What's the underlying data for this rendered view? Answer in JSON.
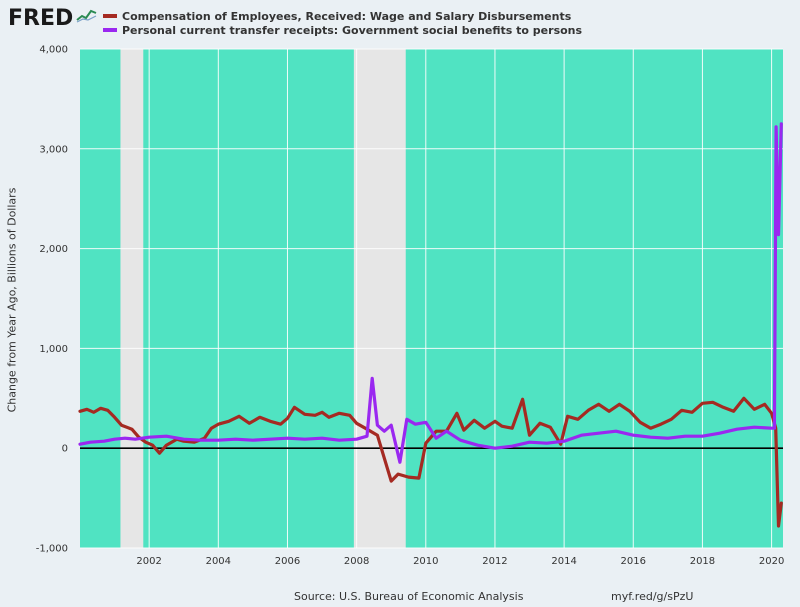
{
  "logo": {
    "text": "FRED",
    "icon": "fred-sparkline-icon"
  },
  "colors": {
    "plot_bg": "#50e3c2",
    "recession": "#e6e6e6",
    "page_bg": "#eaf0f4",
    "series_wage": "#a52a22",
    "series_transfer": "#9a28f0",
    "zero_line": "#000000"
  },
  "footer": {
    "source": "Source: U.S. Bureau of Economic Analysis",
    "url": "myf.red/g/sPzU"
  },
  "chart_data": {
    "type": "line",
    "title": "",
    "ylabel": "Change from Year Ago, Billions of Dollars",
    "xlabel": "",
    "xlim": [
      2000.0,
      2020.33
    ],
    "ylim": [
      -1000,
      4000
    ],
    "yticks": [
      -1000,
      0,
      1000,
      2000,
      3000,
      4000
    ],
    "ytick_labels": [
      "-1,000",
      "0",
      "1,000",
      "2,000",
      "3,000",
      "4,000"
    ],
    "xticks": [
      2002,
      2004,
      2006,
      2008,
      2010,
      2012,
      2014,
      2016,
      2018,
      2020
    ],
    "xtick_labels": [
      "2002",
      "2004",
      "2006",
      "2008",
      "2010",
      "2012",
      "2014",
      "2016",
      "2018",
      "2020"
    ],
    "grid": true,
    "legend_position": "top-left",
    "recessions": [
      [
        2001.17,
        2001.83
      ],
      [
        2007.92,
        2009.42
      ]
    ],
    "series": [
      {
        "name": "Compensation of Employees, Received: Wage and Salary Disbursements",
        "color": "#a52a22",
        "points": [
          [
            2000.0,
            370
          ],
          [
            2000.2,
            390
          ],
          [
            2000.4,
            360
          ],
          [
            2000.6,
            400
          ],
          [
            2000.8,
            380
          ],
          [
            2001.0,
            310
          ],
          [
            2001.2,
            230
          ],
          [
            2001.5,
            190
          ],
          [
            2001.7,
            110
          ],
          [
            2001.9,
            60
          ],
          [
            2002.1,
            30
          ],
          [
            2002.3,
            -50
          ],
          [
            2002.5,
            30
          ],
          [
            2002.8,
            90
          ],
          [
            2003.0,
            70
          ],
          [
            2003.3,
            60
          ],
          [
            2003.6,
            100
          ],
          [
            2003.8,
            200
          ],
          [
            2004.0,
            240
          ],
          [
            2004.3,
            270
          ],
          [
            2004.6,
            320
          ],
          [
            2004.9,
            250
          ],
          [
            2005.2,
            310
          ],
          [
            2005.5,
            270
          ],
          [
            2005.8,
            240
          ],
          [
            2006.0,
            300
          ],
          [
            2006.2,
            410
          ],
          [
            2006.5,
            340
          ],
          [
            2006.8,
            330
          ],
          [
            2007.0,
            360
          ],
          [
            2007.2,
            310
          ],
          [
            2007.5,
            350
          ],
          [
            2007.8,
            330
          ],
          [
            2008.0,
            250
          ],
          [
            2008.3,
            190
          ],
          [
            2008.6,
            130
          ],
          [
            2008.8,
            -100
          ],
          [
            2009.0,
            -330
          ],
          [
            2009.2,
            -260
          ],
          [
            2009.5,
            -290
          ],
          [
            2009.8,
            -300
          ],
          [
            2010.0,
            50
          ],
          [
            2010.3,
            170
          ],
          [
            2010.6,
            170
          ],
          [
            2010.9,
            350
          ],
          [
            2011.1,
            180
          ],
          [
            2011.4,
            280
          ],
          [
            2011.7,
            200
          ],
          [
            2012.0,
            270
          ],
          [
            2012.2,
            220
          ],
          [
            2012.5,
            200
          ],
          [
            2012.8,
            490
          ],
          [
            2013.0,
            130
          ],
          [
            2013.3,
            250
          ],
          [
            2013.6,
            210
          ],
          [
            2013.9,
            40
          ],
          [
            2014.1,
            320
          ],
          [
            2014.4,
            290
          ],
          [
            2014.7,
            380
          ],
          [
            2015.0,
            440
          ],
          [
            2015.3,
            370
          ],
          [
            2015.6,
            440
          ],
          [
            2015.9,
            370
          ],
          [
            2016.2,
            260
          ],
          [
            2016.5,
            200
          ],
          [
            2016.8,
            240
          ],
          [
            2017.1,
            290
          ],
          [
            2017.4,
            380
          ],
          [
            2017.7,
            360
          ],
          [
            2018.0,
            450
          ],
          [
            2018.3,
            460
          ],
          [
            2018.6,
            410
          ],
          [
            2018.9,
            370
          ],
          [
            2019.2,
            500
          ],
          [
            2019.5,
            390
          ],
          [
            2019.8,
            440
          ],
          [
            2020.0,
            350
          ],
          [
            2020.12,
            200
          ],
          [
            2020.2,
            -780
          ],
          [
            2020.28,
            -550
          ]
        ]
      },
      {
        "name": "Personal current transfer receipts: Government social benefits to persons",
        "color": "#9a28f0",
        "points": [
          [
            2000.0,
            40
          ],
          [
            2000.3,
            60
          ],
          [
            2000.7,
            70
          ],
          [
            2001.0,
            90
          ],
          [
            2001.3,
            100
          ],
          [
            2001.6,
            90
          ],
          [
            2002.0,
            110
          ],
          [
            2002.5,
            120
          ],
          [
            2003.0,
            90
          ],
          [
            2003.5,
            80
          ],
          [
            2004.0,
            80
          ],
          [
            2004.5,
            90
          ],
          [
            2005.0,
            80
          ],
          [
            2005.5,
            90
          ],
          [
            2006.0,
            100
          ],
          [
            2006.5,
            90
          ],
          [
            2007.0,
            100
          ],
          [
            2007.5,
            80
          ],
          [
            2008.0,
            90
          ],
          [
            2008.3,
            120
          ],
          [
            2008.45,
            700
          ],
          [
            2008.6,
            230
          ],
          [
            2008.8,
            170
          ],
          [
            2009.0,
            230
          ],
          [
            2009.25,
            -140
          ],
          [
            2009.45,
            290
          ],
          [
            2009.7,
            240
          ],
          [
            2010.0,
            260
          ],
          [
            2010.3,
            100
          ],
          [
            2010.6,
            170
          ],
          [
            2011.0,
            80
          ],
          [
            2011.5,
            30
          ],
          [
            2012.0,
            0
          ],
          [
            2012.5,
            20
          ],
          [
            2013.0,
            60
          ],
          [
            2013.5,
            50
          ],
          [
            2014.0,
            70
          ],
          [
            2014.5,
            130
          ],
          [
            2015.0,
            150
          ],
          [
            2015.5,
            170
          ],
          [
            2016.0,
            130
          ],
          [
            2016.5,
            110
          ],
          [
            2017.0,
            100
          ],
          [
            2017.5,
            120
          ],
          [
            2018.0,
            120
          ],
          [
            2018.5,
            150
          ],
          [
            2019.0,
            190
          ],
          [
            2019.5,
            210
          ],
          [
            2020.0,
            200
          ],
          [
            2020.08,
            200
          ],
          [
            2020.13,
            3220
          ],
          [
            2020.2,
            2140
          ],
          [
            2020.28,
            3250
          ]
        ]
      }
    ]
  }
}
